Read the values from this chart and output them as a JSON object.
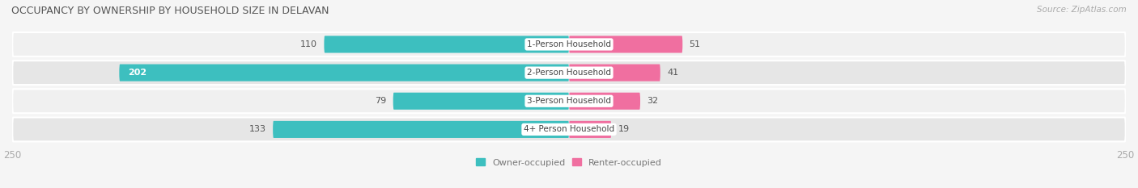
{
  "title": "OCCUPANCY BY OWNERSHIP BY HOUSEHOLD SIZE IN DELAVAN",
  "source": "Source: ZipAtlas.com",
  "categories": [
    "1-Person Household",
    "2-Person Household",
    "3-Person Household",
    "4+ Person Household"
  ],
  "owner_values": [
    110,
    202,
    79,
    133
  ],
  "renter_values": [
    51,
    41,
    32,
    19
  ],
  "owner_color": "#3dbfbf",
  "renter_color": "#f06fa0",
  "row_color_even": "#f0f0f0",
  "row_color_odd": "#e6e6e6",
  "axis_max": 250,
  "title_fontsize": 9.0,
  "source_fontsize": 7.5,
  "tick_fontsize": 8.5,
  "bar_label_fontsize": 8.0,
  "legend_fontsize": 8.0,
  "category_fontsize": 7.5,
  "bg_color": "#f5f5f5"
}
